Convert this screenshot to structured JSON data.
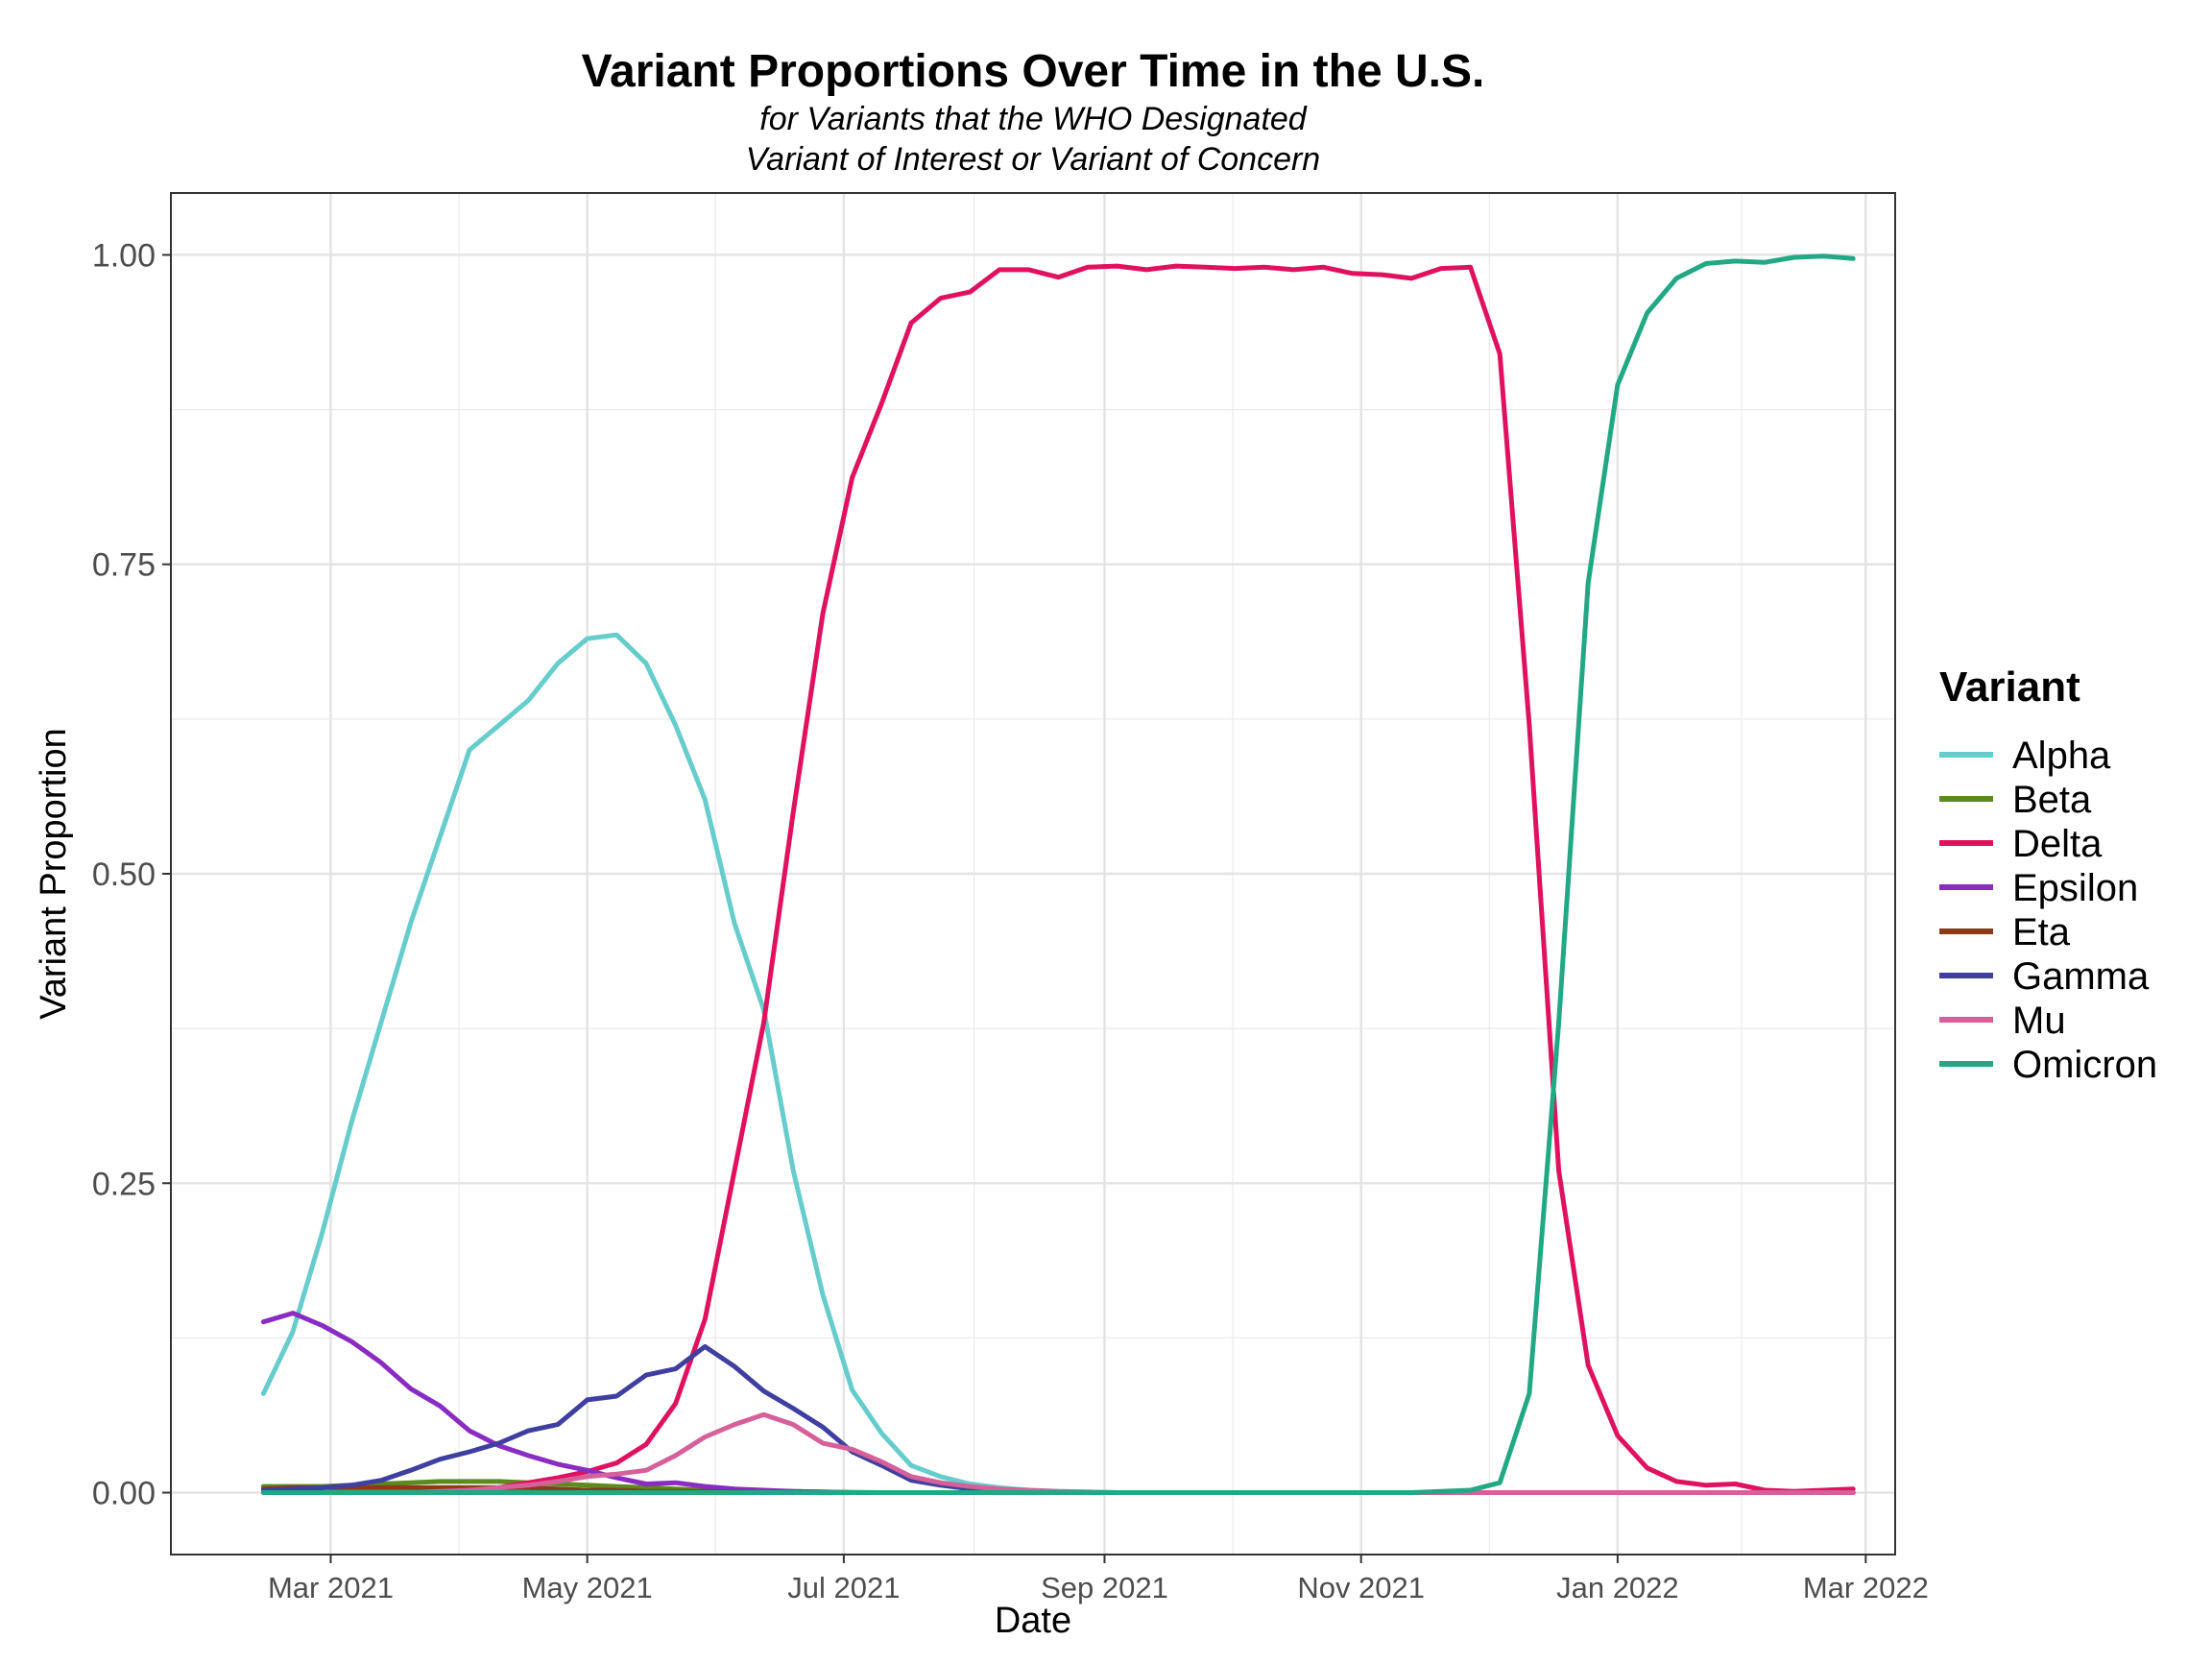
{
  "chart_data": {
    "type": "line",
    "title": "Variant Proportions Over Time in the U.S.",
    "subtitle_lines": [
      "for Variants that the WHO Designated",
      "Variant of Interest or Variant of Concern"
    ],
    "xlabel": "Date",
    "ylabel": "Variant Proportion",
    "xlim": [
      "2021-01-22",
      "2022-03-08"
    ],
    "ylim": [
      -0.05,
      1.05
    ],
    "x_ticks": [
      {
        "date": "2021-03-01",
        "label": "Mar 2021"
      },
      {
        "date": "2021-05-01",
        "label": "May 2021"
      },
      {
        "date": "2021-07-01",
        "label": "Jul 2021"
      },
      {
        "date": "2021-09-01",
        "label": "Sep 2021"
      },
      {
        "date": "2021-11-01",
        "label": "Nov 2021"
      },
      {
        "date": "2022-01-01",
        "label": "Jan 2022"
      },
      {
        "date": "2022-03-01",
        "label": "Mar 2022"
      }
    ],
    "y_ticks": [
      {
        "value": 0,
        "label": "0.00"
      },
      {
        "value": 0.25,
        "label": "0.25"
      },
      {
        "value": 0.5,
        "label": "0.50"
      },
      {
        "value": 0.75,
        "label": "0.75"
      },
      {
        "value": 1,
        "label": "1.00"
      }
    ],
    "grid": true,
    "legend": {
      "title": "Variant",
      "position": "right"
    },
    "x": [
      "2021-02-13",
      "2021-02-20",
      "2021-02-27",
      "2021-03-06",
      "2021-03-13",
      "2021-03-20",
      "2021-03-27",
      "2021-04-03",
      "2021-04-10",
      "2021-04-17",
      "2021-04-24",
      "2021-05-01",
      "2021-05-08",
      "2021-05-15",
      "2021-05-22",
      "2021-05-29",
      "2021-06-05",
      "2021-06-12",
      "2021-06-19",
      "2021-06-26",
      "2021-07-03",
      "2021-07-10",
      "2021-07-17",
      "2021-07-24",
      "2021-07-31",
      "2021-08-07",
      "2021-08-14",
      "2021-08-21",
      "2021-08-28",
      "2021-09-04",
      "2021-09-11",
      "2021-09-18",
      "2021-09-25",
      "2021-10-02",
      "2021-10-09",
      "2021-10-16",
      "2021-10-23",
      "2021-10-30",
      "2021-11-06",
      "2021-11-13",
      "2021-11-20",
      "2021-11-27",
      "2021-12-04",
      "2021-12-11",
      "2021-12-18",
      "2021-12-25",
      "2022-01-01",
      "2022-01-08",
      "2022-01-15",
      "2022-01-22",
      "2022-01-29",
      "2022-02-05",
      "2022-02-12",
      "2022-02-19",
      "2022-02-26"
    ],
    "series": [
      {
        "name": "Alpha",
        "color": "#66CCCC",
        "values": [
          0.08,
          0.13,
          0.21,
          0.3,
          0.38,
          0.46,
          0.53,
          0.6,
          0.62,
          0.64,
          0.67,
          0.69,
          0.693,
          0.67,
          0.62,
          0.56,
          0.46,
          0.39,
          0.26,
          0.16,
          0.083,
          0.048,
          0.022,
          0.013,
          0.007,
          0.004,
          0.002,
          0.001,
          0.0005,
          0,
          0,
          0,
          0,
          0,
          0,
          0,
          0,
          0,
          0,
          0,
          0,
          0,
          0,
          0,
          0,
          0,
          0,
          0,
          0,
          0,
          0,
          0,
          0,
          0,
          0
        ]
      },
      {
        "name": "Beta",
        "color": "#5C8A1E",
        "values": [
          0.005,
          0.005,
          0.005,
          0.006,
          0.007,
          0.008,
          0.009,
          0.009,
          0.009,
          0.008,
          0.007,
          0.006,
          0.005,
          0.004,
          0.003,
          0.002,
          0.002,
          0.001,
          0.001,
          0.0005,
          0.0003,
          0,
          0,
          0,
          0,
          0,
          0,
          0,
          0,
          0,
          0,
          0,
          0,
          0,
          0,
          0,
          0,
          0,
          0,
          0,
          0,
          0,
          0,
          0,
          0,
          0,
          0,
          0,
          0,
          0,
          0,
          0,
          0,
          0,
          0
        ]
      },
      {
        "name": "Delta",
        "color": "#E0115F",
        "values": [
          0,
          0,
          0,
          0,
          0,
          0,
          0.001,
          0.002,
          0.004,
          0.008,
          0.012,
          0.017,
          0.024,
          0.039,
          0.072,
          0.14,
          0.26,
          0.38,
          0.55,
          0.71,
          0.82,
          0.88,
          0.945,
          0.965,
          0.97,
          0.988,
          0.988,
          0.982,
          0.99,
          0.991,
          0.988,
          0.991,
          0.99,
          0.989,
          0.99,
          0.988,
          0.99,
          0.985,
          0.984,
          0.981,
          0.989,
          0.99,
          0.92,
          0.62,
          0.26,
          0.103,
          0.046,
          0.02,
          0.009,
          0.006,
          0.007,
          0.002,
          0.001,
          0.002,
          0.003
        ]
      },
      {
        "name": "Epsilon",
        "color": "#8A2BC2",
        "values": [
          0.138,
          0.145,
          0.135,
          0.122,
          0.105,
          0.084,
          0.07,
          0.05,
          0.038,
          0.03,
          0.023,
          0.018,
          0.012,
          0.007,
          0.008,
          0.005,
          0.003,
          0.002,
          0.001,
          0.0005,
          0,
          0,
          0,
          0,
          0,
          0,
          0,
          0,
          0,
          0,
          0,
          0,
          0,
          0,
          0,
          0,
          0,
          0,
          0,
          0,
          0,
          0,
          0,
          0,
          0,
          0,
          0,
          0,
          0,
          0,
          0,
          0,
          0,
          0,
          0
        ]
      },
      {
        "name": "Eta",
        "color": "#8B3A1A",
        "values": [
          0.003,
          0.004,
          0.004,
          0.004,
          0.004,
          0.004,
          0.004,
          0.004,
          0.004,
          0.004,
          0.003,
          0.002,
          0.002,
          0.001,
          0.001,
          0.001,
          0.0005,
          0,
          0,
          0,
          0,
          0,
          0,
          0,
          0,
          0,
          0,
          0,
          0,
          0,
          0,
          0,
          0,
          0,
          0,
          0,
          0,
          0,
          0,
          0,
          0,
          0,
          0,
          0,
          0,
          0,
          0,
          0,
          0,
          0,
          0,
          0,
          0,
          0,
          0
        ]
      },
      {
        "name": "Gamma",
        "color": "#3F3FA0",
        "values": [
          0.002,
          0.003,
          0.004,
          0.006,
          0.01,
          0.018,
          0.027,
          0.033,
          0.04,
          0.05,
          0.055,
          0.075,
          0.078,
          0.095,
          0.1,
          0.118,
          0.102,
          0.082,
          0.068,
          0.053,
          0.033,
          0.022,
          0.01,
          0.006,
          0.003,
          0.002,
          0.001,
          0.0005,
          0,
          0,
          0,
          0,
          0,
          0,
          0,
          0,
          0,
          0,
          0,
          0,
          0,
          0,
          0,
          0,
          0,
          0,
          0,
          0,
          0,
          0,
          0,
          0,
          0,
          0,
          0
        ]
      },
      {
        "name": "Mu",
        "color": "#D6609A",
        "values": [
          0,
          0,
          0,
          0,
          0,
          0,
          0.001,
          0.002,
          0.004,
          0.006,
          0.009,
          0.013,
          0.015,
          0.018,
          0.03,
          0.045,
          0.055,
          0.063,
          0.055,
          0.04,
          0.035,
          0.025,
          0.013,
          0.008,
          0.005,
          0.003,
          0.002,
          0.001,
          0.0005,
          0,
          0,
          0,
          0,
          0,
          0,
          0,
          0,
          0,
          0,
          0,
          0,
          0,
          0,
          0,
          0,
          0,
          0,
          0,
          0,
          0,
          0,
          0,
          0,
          0,
          0
        ]
      },
      {
        "name": "Omicron",
        "color": "#22A884",
        "values": [
          0,
          0,
          0,
          0,
          0,
          0,
          0,
          0,
          0,
          0,
          0,
          0,
          0,
          0,
          0,
          0,
          0,
          0,
          0,
          0,
          0,
          0,
          0,
          0,
          0,
          0,
          0,
          0,
          0,
          0,
          0,
          0,
          0,
          0,
          0,
          0,
          0,
          0,
          0,
          0,
          0.001,
          0.002,
          0.008,
          0.08,
          0.38,
          0.735,
          0.895,
          0.953,
          0.981,
          0.993,
          0.995,
          0.994,
          0.998,
          0.999,
          0.997
        ]
      }
    ]
  }
}
